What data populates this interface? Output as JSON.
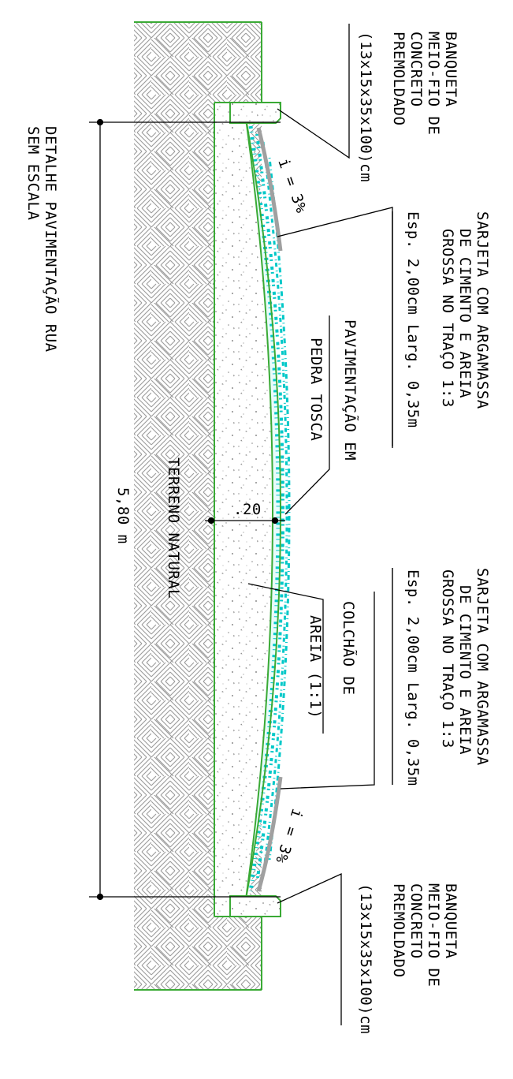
{
  "labels": {
    "detail_title": [
      "DETALHE PAVIMENTAÇÃO RUA",
      "SEM ESCALA"
    ],
    "curb_top": [
      "BANQUETA",
      "MEIO-FIO DE",
      "CONCRETO",
      "PREMOLDADO",
      "(13x15x35x100)cm"
    ],
    "curb_bottom": [
      "BANQUETA",
      "MEIO-FIO DE",
      "CONCRETO",
      "PREMOLDADO",
      "(13x15x35x100)cm"
    ],
    "gutter_top": [
      "SARJETA COM ARGAMASSA",
      "DE CIMENTO E AREIA",
      "GROSSA NO TRAÇO 1:3",
      "Esp. 2,00cm  Larg. 0,35m"
    ],
    "gutter_bottom": [
      "SARJETA COM ARGAMASSA",
      "DE CIMENTO E AREIA",
      "GROSSA NO TRAÇO 1:3",
      "Esp. 2,00cm  Larg. 0,35m"
    ],
    "paving": [
      "PAVIMENTAÇÃO EM",
      "PEDRA TOSCA"
    ],
    "sand_bed": [
      "COLCHÃO DE",
      "AREIA (1:1)"
    ],
    "natural_ground": "TERRENO NATURAL",
    "slope_top": "i = 3%",
    "slope_bottom": "i = 3%",
    "crown_dimension": ".20",
    "width_dimension": "5,80 m"
  },
  "colors": {
    "outline": "#3aaa35",
    "paving_stone": "#00c8c8",
    "gutter": "#a0a0a0",
    "hatch": "#9a9a9a",
    "ink": "#000000"
  }
}
